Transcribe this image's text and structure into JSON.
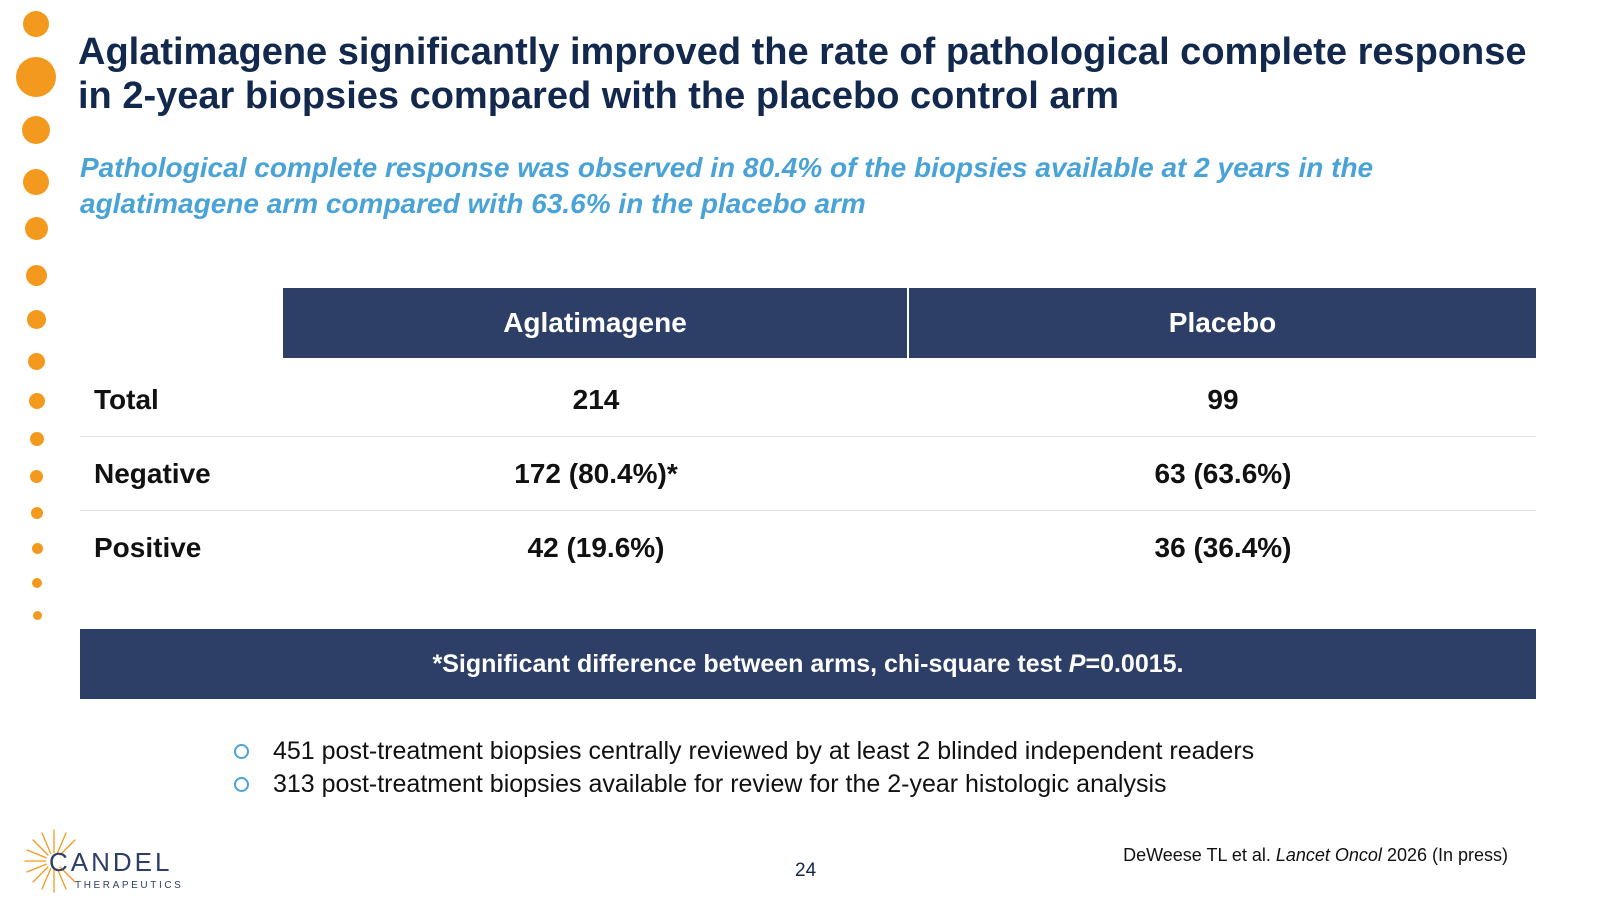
{
  "title": "Aglatimagene significantly improved the rate of pathological complete response in 2-year biopsies compared with the placebo control arm",
  "subtitle": "Pathological complete response was observed in 80.4% of the biopsies available at 2 years in the aglatimagene arm compared with 63.6% in the placebo arm",
  "table": {
    "headers": [
      "Aglatimagene",
      "Placebo"
    ],
    "rows": [
      {
        "label": "Total",
        "aglatimagene": "214",
        "placebo": "99"
      },
      {
        "label": "Negative",
        "aglatimagene": "172 (80.4%)*",
        "placebo": "63 (63.6%)"
      },
      {
        "label": "Positive",
        "aglatimagene": "42 (19.6%)",
        "placebo": "36 (36.4%)"
      }
    ]
  },
  "note": {
    "prefix": "*Significant difference between arms, chi-square test ",
    "p_symbol": "P",
    "suffix": "=0.0015."
  },
  "bullets": [
    "451 post-treatment biopsies centrally reviewed by at least 2 blinded independent readers",
    "313 post-treatment biopsies available for review for the 2-year histologic analysis"
  ],
  "footer": {
    "page_number": "24",
    "citation_authors": "DeWeese TL et al. ",
    "citation_journal": "Lancet Oncol",
    "citation_rest": " 2026 (In press)"
  },
  "logo": {
    "name": "CANDEL",
    "tagline": "THERAPEUTICS"
  },
  "colors": {
    "title": "#12284C",
    "subtitle": "#4AA3D6",
    "header_fill": "#2D3F66",
    "accent_dots": "#F39A1E"
  }
}
